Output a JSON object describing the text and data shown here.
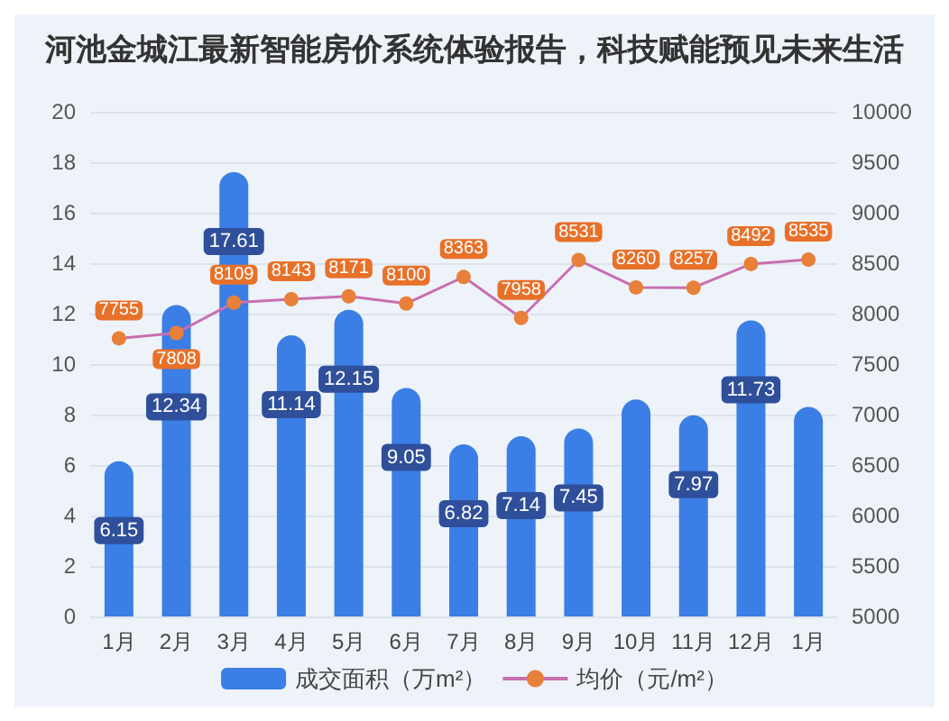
{
  "chart_data": {
    "type": "bar",
    "title": "河池金城江最新智能房价系统体验报告，科技赋能预见未来生活",
    "categories": [
      "1月",
      "2月",
      "3月",
      "4月",
      "5月",
      "6月",
      "7月",
      "8月",
      "9月",
      "10月",
      "11月",
      "12月",
      "1月"
    ],
    "series": [
      {
        "name": "成交面积（万m²）",
        "type": "bar",
        "color": "#3a7ee6",
        "values": [
          6.15,
          12.34,
          17.61,
          11.14,
          12.15,
          9.05,
          6.82,
          7.14,
          7.45,
          8.6,
          7.97,
          11.73,
          8.3
        ],
        "value_labels": [
          "6.15",
          "12.34",
          "17.61",
          "11.14",
          "12.15",
          "9.05",
          "6.82",
          "7.14",
          "7.45",
          null,
          "7.97",
          "11.73",
          null
        ]
      },
      {
        "name": "均价（元/m²）",
        "type": "line",
        "axis": "y2",
        "color": "#e8803a",
        "marker": "circle",
        "values": [
          7755,
          7808,
          8109,
          8143,
          8171,
          8100,
          8363,
          7958,
          8531,
          8260,
          8257,
          8492,
          8535
        ],
        "value_labels": [
          "7755",
          "7808",
          "8109",
          "8143",
          "8171",
          "8100",
          "8363",
          "7958",
          "8531",
          "8260",
          "8257",
          "8492",
          "8535"
        ]
      }
    ],
    "ylim": [
      0,
      20
    ],
    "yticks": [
      0,
      2,
      4,
      6,
      8,
      10,
      12,
      14,
      16,
      18,
      20
    ],
    "y2lim": [
      5000,
      10000
    ],
    "y2ticks": [
      5000,
      5500,
      6000,
      6500,
      7000,
      7500,
      8000,
      8500,
      9000,
      9500,
      10000
    ],
    "grid": "y",
    "legend": "bottom"
  }
}
